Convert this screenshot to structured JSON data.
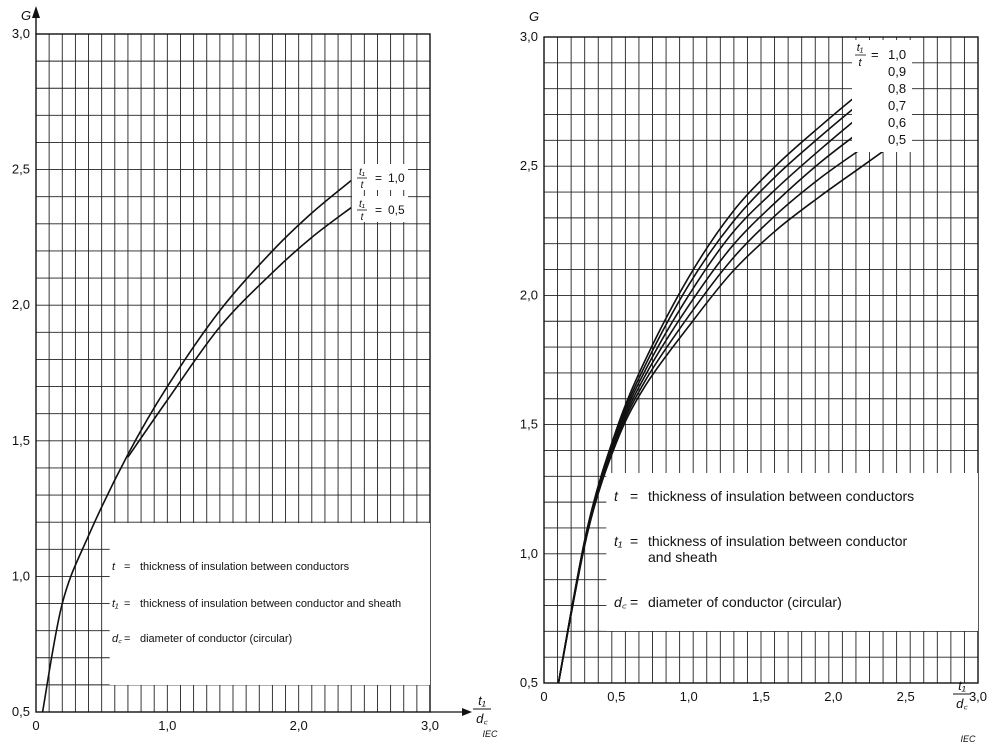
{
  "chart_data": [
    {
      "type": "line",
      "title": "",
      "xlabel": "t1/dc",
      "ylabel": "G",
      "xlim": [
        0,
        3.0
      ],
      "ylim": [
        0.5,
        3.0
      ],
      "x_ticks": [
        "0",
        "1,0",
        "2,0",
        "3,0"
      ],
      "y_ticks": [
        "0,5",
        "1,0",
        "1,5",
        "2,0",
        "2,5",
        "3,0"
      ],
      "grid": true,
      "source_mark": "IEC",
      "legend_title": "t1/t",
      "series": [
        {
          "name": "1,0",
          "x": [
            0.05,
            0.2,
            0.4,
            0.7,
            1.0,
            1.4,
            1.8,
            2.1,
            2.4
          ],
          "y": [
            0.5,
            0.9,
            1.15,
            1.45,
            1.7,
            1.98,
            2.2,
            2.34,
            2.46
          ]
        },
        {
          "name": "0,5",
          "x": [
            0.7,
            1.0,
            1.4,
            1.8,
            2.1,
            2.4
          ],
          "y": [
            1.44,
            1.65,
            1.92,
            2.12,
            2.25,
            2.36
          ]
        }
      ],
      "legend_items": [
        {
          "symbol": "t",
          "text": "thickness of insulation between conductors"
        },
        {
          "symbol": "t1",
          "text": "thickness of insulation between conductor and sheath"
        },
        {
          "symbol": "dc",
          "text": "diameter of conductor (circular)"
        }
      ]
    },
    {
      "type": "line",
      "title": "",
      "xlabel": "t1/dc",
      "ylabel": "G",
      "xlim": [
        0,
        3.0
      ],
      "ylim": [
        0.5,
        3.0
      ],
      "x_ticks": [
        "0",
        "0,5",
        "1,0",
        "1,5",
        "2,0",
        "2,5",
        "3,0"
      ],
      "y_ticks": [
        "0,5",
        "1,0",
        "1,5",
        "2,0",
        "2,5",
        "3,0"
      ],
      "grid": true,
      "source_mark": "IEC",
      "legend_title": "t1/t",
      "series": [
        {
          "name": "1,0",
          "x": [
            0.1,
            0.3,
            0.5,
            0.7,
            1.0,
            1.3,
            1.6,
            1.9,
            2.2,
            2.4
          ],
          "y": [
            0.5,
            1.1,
            1.48,
            1.75,
            2.07,
            2.32,
            2.5,
            2.65,
            2.79,
            2.87
          ]
        },
        {
          "name": "0,9",
          "x": [
            0.1,
            0.3,
            0.5,
            0.7,
            1.0,
            1.3,
            1.6,
            1.9,
            2.2,
            2.4
          ],
          "y": [
            0.5,
            1.1,
            1.47,
            1.73,
            2.04,
            2.28,
            2.46,
            2.61,
            2.75,
            2.83
          ]
        },
        {
          "name": "0,8",
          "x": [
            0.1,
            0.3,
            0.5,
            0.7,
            1.0,
            1.3,
            1.6,
            1.9,
            2.2,
            2.4
          ],
          "y": [
            0.5,
            1.09,
            1.46,
            1.71,
            2.0,
            2.24,
            2.41,
            2.56,
            2.7,
            2.78
          ]
        },
        {
          "name": "0,7",
          "x": [
            0.1,
            0.3,
            0.5,
            0.7,
            1.0,
            1.3,
            1.6,
            1.9,
            2.2,
            2.4
          ],
          "y": [
            0.5,
            1.09,
            1.45,
            1.69,
            1.96,
            2.19,
            2.36,
            2.51,
            2.64,
            2.72
          ]
        },
        {
          "name": "0,6",
          "x": [
            0.1,
            0.3,
            0.5,
            0.7,
            1.0,
            1.3,
            1.6,
            1.9,
            2.2,
            2.4
          ],
          "y": [
            0.5,
            1.08,
            1.44,
            1.67,
            1.92,
            2.14,
            2.31,
            2.45,
            2.57,
            2.65
          ]
        },
        {
          "name": "0,5",
          "x": [
            0.1,
            0.3,
            0.5,
            0.7,
            1.0,
            1.3,
            1.6,
            1.9,
            2.2,
            2.4
          ],
          "y": [
            0.5,
            1.08,
            1.43,
            1.65,
            1.88,
            2.09,
            2.25,
            2.38,
            2.5,
            2.58
          ]
        }
      ],
      "legend_items": [
        {
          "symbol": "t",
          "text": "thickness of insulation between conductors"
        },
        {
          "symbol": "t1",
          "text": "thickness of insulation between conductor and sheath"
        },
        {
          "symbol": "dc",
          "text": "diameter of conductor (circular)"
        }
      ]
    }
  ]
}
